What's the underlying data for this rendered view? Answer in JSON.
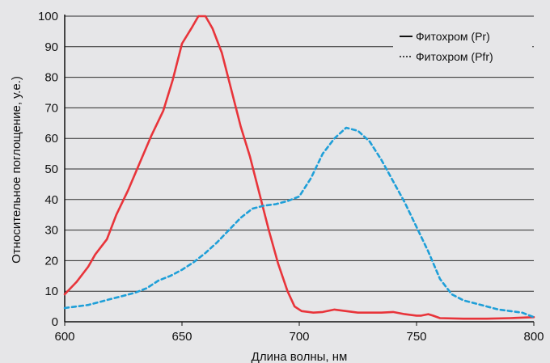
{
  "chart_data": {
    "type": "line",
    "title": "",
    "xlabel": "Длина волны, нм",
    "ylabel": "Относительное поглощение, у.е.)",
    "xlim": [
      600,
      800
    ],
    "ylim": [
      0,
      100
    ],
    "xticks": [
      600,
      650,
      700,
      750,
      800
    ],
    "yticks": [
      0,
      10,
      20,
      30,
      40,
      50,
      60,
      70,
      80,
      90,
      100
    ],
    "grid": "horizontal",
    "legend_position": "top-right",
    "series": [
      {
        "name": "Фитохром (Pr)",
        "color": "#e8343a",
        "style": "solid",
        "points": [
          [
            600,
            9
          ],
          [
            605,
            13
          ],
          [
            610,
            18
          ],
          [
            613,
            22
          ],
          [
            618,
            27
          ],
          [
            622,
            35
          ],
          [
            627,
            43
          ],
          [
            632,
            52
          ],
          [
            637,
            61
          ],
          [
            642,
            69
          ],
          [
            646,
            79
          ],
          [
            650,
            91
          ],
          [
            654,
            96
          ],
          [
            657,
            100
          ],
          [
            660,
            100
          ],
          [
            663,
            96
          ],
          [
            667,
            88
          ],
          [
            671,
            76
          ],
          [
            675,
            64
          ],
          [
            679,
            54
          ],
          [
            683,
            42
          ],
          [
            687,
            30
          ],
          [
            691,
            19
          ],
          [
            695,
            10
          ],
          [
            698,
            5
          ],
          [
            701,
            3.5
          ],
          [
            706,
            3
          ],
          [
            710,
            3.2
          ],
          [
            715,
            4
          ],
          [
            720,
            3.5
          ],
          [
            725,
            3
          ],
          [
            730,
            3
          ],
          [
            735,
            3
          ],
          [
            740,
            3.2
          ],
          [
            745,
            2.5
          ],
          [
            750,
            2
          ],
          [
            752,
            2
          ],
          [
            755,
            2.5
          ],
          [
            757,
            2
          ],
          [
            760,
            1.2
          ],
          [
            770,
            1
          ],
          [
            780,
            1
          ],
          [
            790,
            1.2
          ],
          [
            800,
            1.5
          ]
        ]
      },
      {
        "name": "Фитохром (Pfr)",
        "color": "#1f9fd8",
        "style": "dashed",
        "points": [
          [
            600,
            4.5
          ],
          [
            605,
            5
          ],
          [
            610,
            5.5
          ],
          [
            615,
            6.5
          ],
          [
            620,
            7.5
          ],
          [
            625,
            8.5
          ],
          [
            630,
            9.5
          ],
          [
            635,
            11
          ],
          [
            640,
            13.5
          ],
          [
            645,
            15
          ],
          [
            650,
            17
          ],
          [
            655,
            19.5
          ],
          [
            660,
            22.5
          ],
          [
            665,
            26
          ],
          [
            670,
            30
          ],
          [
            675,
            34
          ],
          [
            680,
            37
          ],
          [
            685,
            38
          ],
          [
            690,
            38.5
          ],
          [
            695,
            39.5
          ],
          [
            700,
            41
          ],
          [
            705,
            47
          ],
          [
            710,
            55
          ],
          [
            715,
            60
          ],
          [
            720,
            63.5
          ],
          [
            725,
            62.5
          ],
          [
            730,
            59
          ],
          [
            735,
            53
          ],
          [
            740,
            46
          ],
          [
            745,
            39
          ],
          [
            750,
            31
          ],
          [
            755,
            23
          ],
          [
            760,
            14
          ],
          [
            765,
            9
          ],
          [
            770,
            7
          ],
          [
            775,
            6
          ],
          [
            780,
            5
          ],
          [
            785,
            4
          ],
          [
            790,
            3.5
          ],
          [
            795,
            3
          ],
          [
            800,
            1.5
          ]
        ]
      }
    ]
  }
}
